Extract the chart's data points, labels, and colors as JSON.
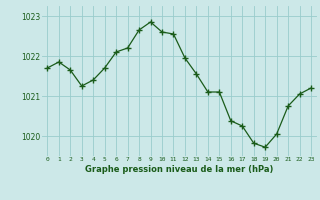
{
  "x": [
    0,
    1,
    2,
    3,
    4,
    5,
    6,
    7,
    8,
    9,
    10,
    11,
    12,
    13,
    14,
    15,
    16,
    17,
    18,
    19,
    20,
    21,
    22,
    23
  ],
  "y": [
    1021.7,
    1021.85,
    1021.65,
    1021.25,
    1021.4,
    1021.7,
    1022.1,
    1022.2,
    1022.65,
    1022.85,
    1022.6,
    1022.55,
    1021.95,
    1021.55,
    1021.1,
    1021.1,
    1020.38,
    1020.25,
    1019.82,
    1019.72,
    1020.05,
    1020.75,
    1021.05,
    1021.2
  ],
  "ylim": [
    1019.5,
    1023.25
  ],
  "yticks": [
    1020,
    1021,
    1022,
    1023
  ],
  "xticks": [
    0,
    1,
    2,
    3,
    4,
    5,
    6,
    7,
    8,
    9,
    10,
    11,
    12,
    13,
    14,
    15,
    16,
    17,
    18,
    19,
    20,
    21,
    22,
    23
  ],
  "line_color": "#1a5c1a",
  "marker": "+",
  "marker_color": "#1a5c1a",
  "bg_color": "#cce8e8",
  "grid_color": "#99cccc",
  "xlabel": "Graphe pression niveau de la mer (hPa)",
  "xlabel_color": "#1a5c1a",
  "tick_color": "#1a5c1a"
}
